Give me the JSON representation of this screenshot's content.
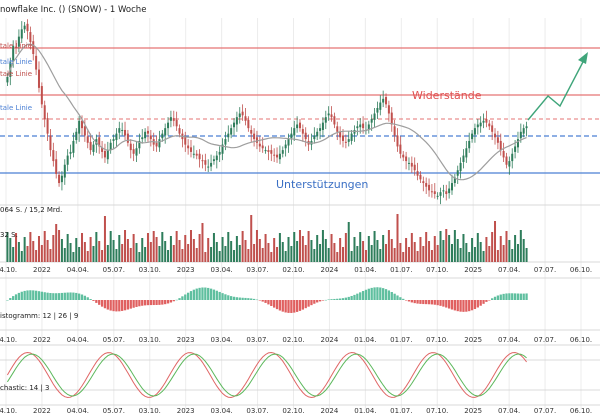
{
  "header": {
    "title": "nowflake Inc. () (SNOW) - 1 Woche",
    "volume_label": "064 S. / 15,2 Mrd.",
    "volume_sub": "32 S.",
    "macd_label": "istogramm: 12 | 26 | 9",
    "stoch_label": "chastic: 14 | 3"
  },
  "annotations": {
    "line_labels": [
      "tale Linie",
      "tale Linie",
      "tale Linie",
      "tale Linie"
    ],
    "resistance": "Widerstände",
    "support": "Unterstützungen"
  },
  "x_axis": {
    "ticks": [
      "04.10.",
      "2022",
      "04.04.",
      "05.07.",
      "03.10.",
      "2023",
      "03.04.",
      "03.07.",
      "02.10.",
      "2024",
      "01.04.",
      "01.07.",
      "07.10.",
      "2025",
      "07.04.",
      "07.07.",
      "06.10."
    ]
  },
  "colors": {
    "up": "#2e7d5b",
    "down": "#c0504d",
    "resistance": "#e57373",
    "trend_blue": "#4a7fd4",
    "ma": "#9e9e9e",
    "macd_pos": "#5fbf9f",
    "macd_neg": "#e06060",
    "stoch_k": "#e06666",
    "stoch_d": "#5cb85c",
    "arrow": "#3fa57a"
  },
  "chart_data": {
    "type": "candlestick",
    "title": "nowflake Inc. () (SNOW) - 1 Woche",
    "closes": [
      180,
      196,
      214,
      212,
      224,
      232,
      236,
      230,
      218,
      205,
      188,
      168,
      150,
      134,
      118,
      100,
      88,
      74,
      64,
      72,
      84,
      94,
      98,
      110,
      120,
      132,
      124,
      116,
      108,
      100,
      106,
      112,
      104,
      98,
      92,
      100,
      108,
      112,
      118,
      124,
      122,
      116,
      108,
      100,
      96,
      102,
      110,
      114,
      120,
      118,
      112,
      106,
      104,
      112,
      118,
      124,
      130,
      136,
      132,
      126,
      118,
      112,
      106,
      102,
      98,
      96,
      94,
      90,
      88,
      84,
      82,
      86,
      90,
      94,
      98,
      106,
      112,
      118,
      124,
      130,
      136,
      140,
      138,
      132,
      124,
      118,
      112,
      108,
      104,
      102,
      100,
      98,
      96,
      94,
      92,
      96,
      100,
      106,
      112,
      118,
      124,
      128,
      124,
      118,
      112,
      106,
      110,
      116,
      120,
      124,
      130,
      136,
      140,
      136,
      128,
      120,
      114,
      110,
      108,
      112,
      118,
      122,
      126,
      128,
      124,
      122,
      128,
      134,
      140,
      146,
      152,
      156,
      150,
      140,
      128,
      116,
      104,
      96,
      92,
      88,
      86,
      82,
      78,
      72,
      68,
      64,
      60,
      56,
      54,
      52,
      50,
      54,
      56,
      52,
      58,
      64,
      70,
      78,
      86,
      94,
      102,
      110,
      118,
      124,
      128,
      130,
      132,
      130,
      126,
      120,
      114,
      108,
      100,
      92,
      84,
      88,
      96,
      104,
      112,
      120,
      124,
      126
    ],
    "resistance_levels": [
      "Widerstände"
    ],
    "support_levels": [
      "Unterstützungen"
    ]
  }
}
